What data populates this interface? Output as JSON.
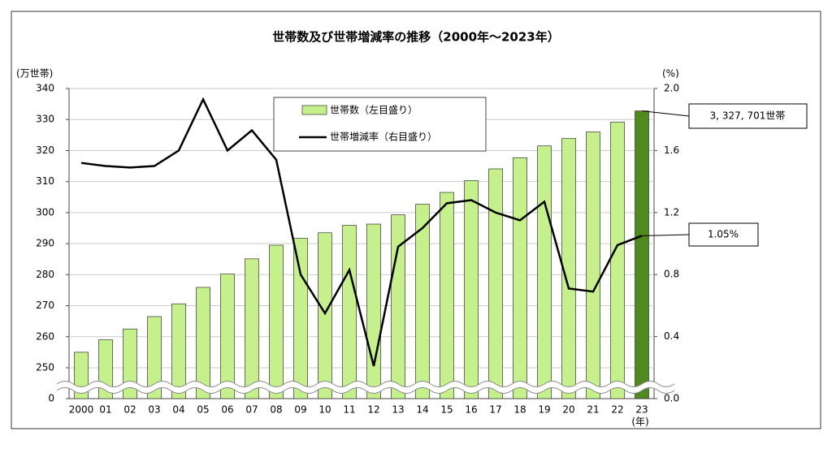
{
  "chart_data": {
    "type": "bar_line",
    "title": "世帯数及び世帯増減率の推移（2000年～2023年）",
    "y_label": "(万世帯)",
    "y2_label": "(%)",
    "x_label": "(年)",
    "categories": [
      "2000",
      "01",
      "02",
      "03",
      "04",
      "05",
      "06",
      "07",
      "08",
      "09",
      "10",
      "11",
      "12",
      "13",
      "14",
      "15",
      "16",
      "17",
      "18",
      "19",
      "20",
      "21",
      "22",
      "23"
    ],
    "series": [
      {
        "name": "世帯数（左目盛り）",
        "type": "bar",
        "color": "#c6f08c",
        "edge_color": "#333333",
        "colors": [
          "#c6f08c",
          "#c6f08c",
          "#c6f08c",
          "#c6f08c",
          "#c6f08c",
          "#c6f08c",
          "#c6f08c",
          "#c6f08c",
          "#c6f08c",
          "#c6f08c",
          "#c6f08c",
          "#c6f08c",
          "#c6f08c",
          "#c6f08c",
          "#c6f08c",
          "#c6f08c",
          "#c6f08c",
          "#c6f08c",
          "#c6f08c",
          "#c6f08c",
          "#c6f08c",
          "#c6f08c",
          "#c6f08c",
          "#4e8a1e"
        ],
        "values": [
          255,
          259,
          262.5,
          266.5,
          270.6,
          275.9,
          280.2,
          285.1,
          289.5,
          291.7,
          293.5,
          295.9,
          296.3,
          299.3,
          302.7,
          306.5,
          310.3,
          314.1,
          317.7,
          321.5,
          323.9,
          326.0,
          329.2,
          332.7701
        ],
        "value_labels": [
          null,
          null,
          null,
          null,
          null,
          null,
          null,
          null,
          null,
          null,
          null,
          null,
          null,
          null,
          null,
          null,
          null,
          null,
          null,
          null,
          null,
          null,
          null,
          "3, 327, 701世帯"
        ]
      },
      {
        "name": "世帯増減率（右目盛り）",
        "type": "line",
        "axis": "y2",
        "color": "#000000",
        "values": [
          1.52,
          1.5,
          1.49,
          1.5,
          1.6,
          1.93,
          1.6,
          1.73,
          1.54,
          0.8,
          0.55,
          0.83,
          0.21,
          0.98,
          1.1,
          1.26,
          1.28,
          1.2,
          1.15,
          1.27,
          0.71,
          0.69,
          0.99,
          1.05
        ],
        "value_labels": [
          null,
          null,
          null,
          null,
          null,
          null,
          null,
          null,
          null,
          null,
          null,
          null,
          null,
          null,
          null,
          null,
          null,
          null,
          null,
          null,
          null,
          null,
          null,
          "1.05%"
        ]
      }
    ],
    "ylim": [
      0,
      340
    ],
    "yticks": [
      0,
      250,
      260,
      270,
      280,
      290,
      300,
      310,
      320,
      330,
      340
    ],
    "axis_break": true,
    "y2lim": [
      0,
      2
    ],
    "y2ticks": [
      {
        "value": 0,
        "label": "0.0"
      },
      {
        "value": 0.4,
        "label": "0.4"
      },
      {
        "value": 0.8,
        "label": "0.8"
      },
      {
        "value": 1.2,
        "label": "1.2"
      },
      {
        "value": 1.6,
        "label": "1.6"
      },
      {
        "value": 2,
        "label": "2.0"
      }
    ],
    "grid": true,
    "legend": "top"
  }
}
